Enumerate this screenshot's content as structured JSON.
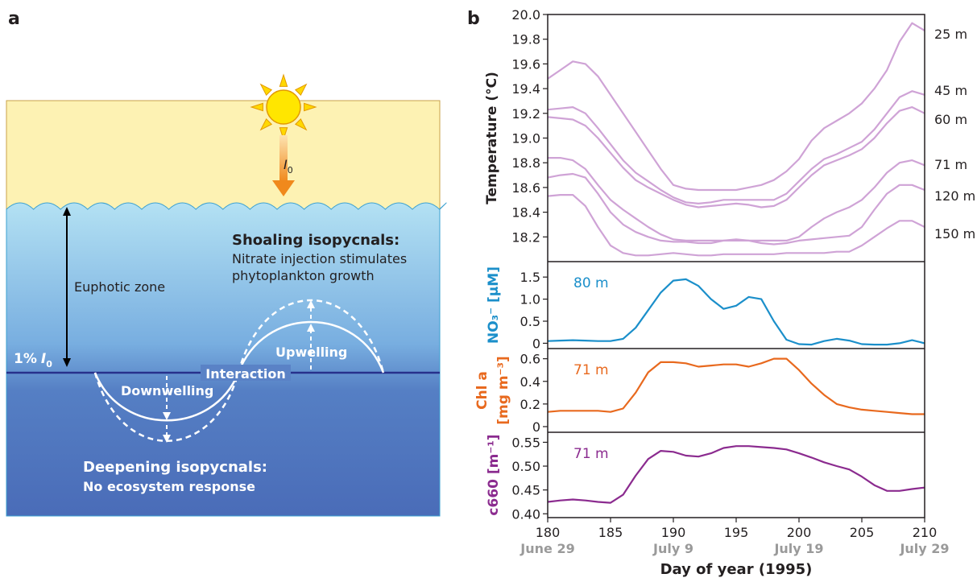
{
  "panel_labels": [
    "a",
    "b"
  ],
  "diagram": {
    "sun_label": {
      "symbol": "I",
      "subscript": "0"
    },
    "euphotic_zone": "Euphotic zone",
    "light_level": {
      "prefix": "1%",
      "symbol": "I",
      "subscript": "0"
    },
    "shoaling": {
      "title": "Shoaling isopycnals:",
      "lines": [
        "Nitrate injection stimulates",
        "phytoplankton growth"
      ]
    },
    "upwelling": "Upwelling",
    "interaction": "Interaction",
    "downwelling": "Downwelling",
    "deepening": {
      "title": "Deepening isopycnals:",
      "subtitle": "No ecosystem response"
    }
  },
  "chart_data": [
    {
      "type": "line",
      "ylabel": "Temperature (°C)",
      "xlim": [
        180,
        210
      ],
      "ylim": [
        18.0,
        20.0
      ],
      "yticks": [
        18.2,
        18.4,
        18.6,
        18.8,
        {
          "value": 19.0,
          "label": "19.0"
        },
        19.2,
        19.4,
        19.6,
        19.8,
        {
          "value": 20.0,
          "label": "20.0"
        }
      ],
      "x": [
        180,
        181,
        182,
        183,
        184,
        185,
        186,
        187,
        188,
        189,
        190,
        191,
        192,
        193,
        194,
        195,
        196,
        197,
        198,
        199,
        200,
        201,
        202,
        203,
        204,
        205,
        206,
        207,
        208,
        209,
        210
      ],
      "series": [
        {
          "name": "25 m",
          "color": "#cfa3d6",
          "values": [
            19.48,
            19.55,
            19.62,
            19.6,
            19.5,
            19.35,
            19.2,
            19.05,
            18.9,
            18.75,
            18.62,
            18.59,
            18.58,
            18.58,
            18.58,
            18.58,
            18.6,
            18.62,
            18.66,
            18.73,
            18.83,
            18.98,
            19.08,
            19.14,
            19.2,
            19.28,
            19.4,
            19.55,
            19.78,
            19.93,
            19.87
          ]
        },
        {
          "name": "45 m",
          "color": "#cfa3d6",
          "values": [
            19.23,
            19.24,
            19.25,
            19.2,
            19.08,
            18.95,
            18.82,
            18.72,
            18.65,
            18.58,
            18.52,
            18.48,
            18.47,
            18.48,
            18.5,
            18.5,
            18.5,
            18.5,
            18.5,
            18.55,
            18.65,
            18.75,
            18.83,
            18.87,
            18.92,
            18.97,
            19.07,
            19.2,
            19.33,
            19.38,
            19.35
          ]
        },
        {
          "name": "60 m",
          "color": "#cfa3d6",
          "values": [
            19.17,
            19.16,
            19.15,
            19.1,
            19.0,
            18.88,
            18.76,
            18.66,
            18.6,
            18.55,
            18.5,
            18.46,
            18.44,
            18.45,
            18.46,
            18.47,
            18.46,
            18.44,
            18.45,
            18.5,
            18.6,
            18.7,
            18.78,
            18.82,
            18.86,
            18.91,
            19.0,
            19.12,
            19.22,
            19.25,
            19.2
          ]
        },
        {
          "name": "71 m",
          "color": "#cfa3d6",
          "values": [
            18.84,
            18.84,
            18.82,
            18.75,
            18.62,
            18.5,
            18.42,
            18.35,
            18.28,
            18.22,
            18.18,
            18.17,
            18.17,
            18.17,
            18.17,
            18.17,
            18.17,
            18.17,
            18.17,
            18.17,
            18.2,
            18.28,
            18.35,
            18.4,
            18.44,
            18.5,
            18.6,
            18.72,
            18.8,
            18.82,
            18.78
          ]
        },
        {
          "name": "120 m",
          "color": "#cfa3d6",
          "values": [
            18.68,
            18.7,
            18.71,
            18.68,
            18.55,
            18.4,
            18.3,
            18.24,
            18.2,
            18.17,
            18.16,
            18.16,
            18.15,
            18.15,
            18.17,
            18.18,
            18.17,
            18.15,
            18.14,
            18.15,
            18.17,
            18.18,
            18.19,
            18.2,
            18.21,
            18.28,
            18.42,
            18.55,
            18.62,
            18.62,
            18.58
          ]
        },
        {
          "name": "150 m",
          "color": "#cfa3d6",
          "values": [
            18.53,
            18.54,
            18.54,
            18.45,
            18.28,
            18.13,
            18.07,
            18.05,
            18.05,
            18.06,
            18.07,
            18.06,
            18.05,
            18.05,
            18.06,
            18.06,
            18.06,
            18.06,
            18.06,
            18.07,
            18.07,
            18.07,
            18.07,
            18.08,
            18.08,
            18.13,
            18.2,
            18.27,
            18.33,
            18.33,
            18.28
          ]
        }
      ]
    },
    {
      "type": "line",
      "ylabel": "NO₃⁻ [µM]",
      "xlim": [
        180,
        210
      ],
      "ylim": [
        -0.12,
        1.85
      ],
      "yticks": [
        0,
        0.5,
        {
          "value": 1.0,
          "label": "1.0"
        },
        1.5
      ],
      "x": [
        180,
        181,
        182,
        183,
        184,
        185,
        186,
        187,
        188,
        189,
        190,
        191,
        192,
        193,
        194,
        195,
        196,
        197,
        198,
        199,
        200,
        201,
        202,
        203,
        204,
        205,
        206,
        207,
        208,
        209,
        210
      ],
      "series": [
        {
          "name": "80 m",
          "color": "#1b8fca",
          "values": [
            0.05,
            0.06,
            0.07,
            0.06,
            0.05,
            0.05,
            0.1,
            0.35,
            0.75,
            1.15,
            1.42,
            1.45,
            1.3,
            1.0,
            0.78,
            0.85,
            1.05,
            1.0,
            0.5,
            0.08,
            -0.02,
            -0.03,
            0.05,
            0.1,
            0.06,
            -0.02,
            -0.03,
            -0.03,
            0.0,
            0.07,
            0.0
          ]
        }
      ]
    },
    {
      "type": "line",
      "ylabel": [
        "Chl a",
        "[mg m⁻³]"
      ],
      "xlim": [
        180,
        210
      ],
      "ylim": [
        -0.05,
        0.69
      ],
      "yticks": [
        0,
        0.2,
        0.4,
        0.6
      ],
      "x": [
        180,
        181,
        182,
        183,
        184,
        185,
        186,
        187,
        188,
        189,
        190,
        191,
        192,
        193,
        194,
        195,
        196,
        197,
        198,
        199,
        200,
        201,
        202,
        203,
        204,
        205,
        206,
        207,
        208,
        209,
        210
      ],
      "series": [
        {
          "name": "71 m",
          "color": "#e8691e",
          "values": [
            0.13,
            0.14,
            0.14,
            0.14,
            0.14,
            0.13,
            0.16,
            0.3,
            0.48,
            0.57,
            0.57,
            0.56,
            0.53,
            0.54,
            0.55,
            0.55,
            0.53,
            0.56,
            0.6,
            0.6,
            0.5,
            0.38,
            0.28,
            0.2,
            0.17,
            0.15,
            0.14,
            0.13,
            0.12,
            0.11,
            0.11
          ]
        }
      ]
    },
    {
      "type": "line",
      "ylabel": "c660 [m⁻¹]",
      "xlim": [
        180,
        210
      ],
      "ylim": [
        0.392,
        0.571
      ],
      "yticks": [
        {
          "value": 0.4,
          "label": "0.40"
        },
        0.45,
        {
          "value": 0.5,
          "label": "0.50"
        },
        0.55
      ],
      "xticks": [
        180,
        185,
        190,
        195,
        200,
        205,
        210
      ],
      "xtick_dates": [
        {
          "value": 180,
          "label": "June 29"
        },
        {
          "value": 190,
          "label": "July 9"
        },
        {
          "value": 200,
          "label": "July 19"
        },
        {
          "value": 210,
          "label": "July 29"
        }
      ],
      "xlabel": "Day of year (1995)",
      "x": [
        180,
        181,
        182,
        183,
        184,
        185,
        186,
        187,
        188,
        189,
        190,
        191,
        192,
        193,
        194,
        195,
        196,
        197,
        198,
        199,
        200,
        201,
        202,
        203,
        204,
        205,
        206,
        207,
        208,
        209,
        210
      ],
      "series": [
        {
          "name": "71 m",
          "color": "#8b2b8f",
          "values": [
            0.425,
            0.428,
            0.43,
            0.428,
            0.425,
            0.423,
            0.44,
            0.48,
            0.515,
            0.532,
            0.53,
            0.522,
            0.52,
            0.527,
            0.538,
            0.542,
            0.542,
            0.54,
            0.538,
            0.535,
            0.527,
            0.518,
            0.508,
            0.5,
            0.493,
            0.478,
            0.46,
            0.448,
            0.448,
            0.452,
            0.455
          ]
        }
      ]
    }
  ]
}
